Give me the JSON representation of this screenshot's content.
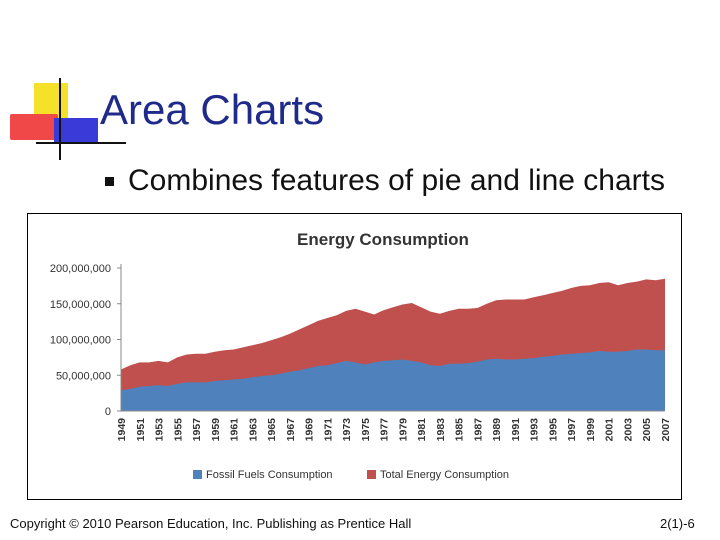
{
  "slide": {
    "title": "Area Charts",
    "bullets": [
      "Combines features of pie and line charts"
    ],
    "footer_left": "Copyright © 2010 Pearson Education, Inc. Publishing as Prentice Hall",
    "footer_right": "2(1)-6"
  },
  "colors": {
    "title": "#1f2a8a",
    "fossil": "#4f81bd",
    "total": "#c0504d",
    "axis": "#888888"
  },
  "chart_data": {
    "type": "area",
    "title": "Energy Consumption",
    "xlabel": "",
    "ylabel": "",
    "ylim": [
      0,
      200000000
    ],
    "y_ticks": [
      0,
      50000000,
      100000000,
      150000000,
      200000000
    ],
    "y_tick_labels": [
      "0",
      "50,000,000",
      "100,000,000",
      "150,000,000",
      "200,000,000"
    ],
    "x_tick_labels": [
      "1949",
      "1951",
      "1953",
      "1955",
      "1957",
      "1959",
      "1961",
      "1963",
      "1965",
      "1967",
      "1969",
      "1971",
      "1973",
      "1975",
      "1977",
      "1979",
      "1981",
      "1983",
      "1985",
      "1987",
      "1989",
      "1991",
      "1993",
      "1995",
      "1997",
      "1999",
      "2001",
      "2003",
      "2005",
      "2007"
    ],
    "legend_position": "bottom",
    "grid": false,
    "x": [
      1949,
      1950,
      1951,
      1952,
      1953,
      1954,
      1955,
      1956,
      1957,
      1958,
      1959,
      1960,
      1961,
      1962,
      1963,
      1964,
      1965,
      1966,
      1967,
      1968,
      1969,
      1970,
      1971,
      1972,
      1973,
      1974,
      1975,
      1976,
      1977,
      1978,
      1979,
      1980,
      1981,
      1982,
      1983,
      1984,
      1985,
      1986,
      1987,
      1988,
      1989,
      1990,
      1991,
      1992,
      1993,
      1994,
      1995,
      1996,
      1997,
      1998,
      1999,
      2000,
      2001,
      2002,
      2003,
      2004,
      2005,
      2006,
      2007
    ],
    "series": [
      {
        "name": "Fossil Fuels Consumption",
        "values": [
          29000000,
          31000000,
          34000000,
          35000000,
          36000000,
          35000000,
          38000000,
          40000000,
          40000000,
          40000000,
          42000000,
          43000000,
          44000000,
          45000000,
          47000000,
          49000000,
          50000000,
          52000000,
          55000000,
          57000000,
          60000000,
          63000000,
          64000000,
          67000000,
          70000000,
          68000000,
          65000000,
          68000000,
          70000000,
          71000000,
          72000000,
          70000000,
          68000000,
          64000000,
          63000000,
          66000000,
          66000000,
          67000000,
          69000000,
          72000000,
          73000000,
          72000000,
          72000000,
          73000000,
          74000000,
          76000000,
          77000000,
          79000000,
          80000000,
          81000000,
          82000000,
          84000000,
          83000000,
          83000000,
          84000000,
          86000000,
          86000000,
          85000000,
          85000000
        ]
      },
      {
        "name": "Total Energy Consumption",
        "values": [
          58000000,
          64000000,
          68000000,
          68000000,
          70000000,
          68000000,
          75000000,
          79000000,
          80000000,
          80000000,
          83000000,
          85000000,
          86000000,
          89000000,
          92000000,
          95000000,
          99000000,
          103000000,
          108000000,
          114000000,
          120000000,
          126000000,
          130000000,
          134000000,
          140000000,
          143000000,
          139000000,
          135000000,
          141000000,
          145000000,
          149000000,
          151000000,
          145000000,
          139000000,
          136000000,
          140000000,
          143000000,
          143000000,
          144000000,
          150000000,
          155000000,
          156000000,
          156000000,
          156000000,
          159000000,
          162000000,
          165000000,
          168000000,
          172000000,
          175000000,
          176000000,
          179000000,
          180000000,
          176000000,
          179000000,
          181000000,
          184000000,
          183000000,
          185000000
        ]
      }
    ]
  }
}
